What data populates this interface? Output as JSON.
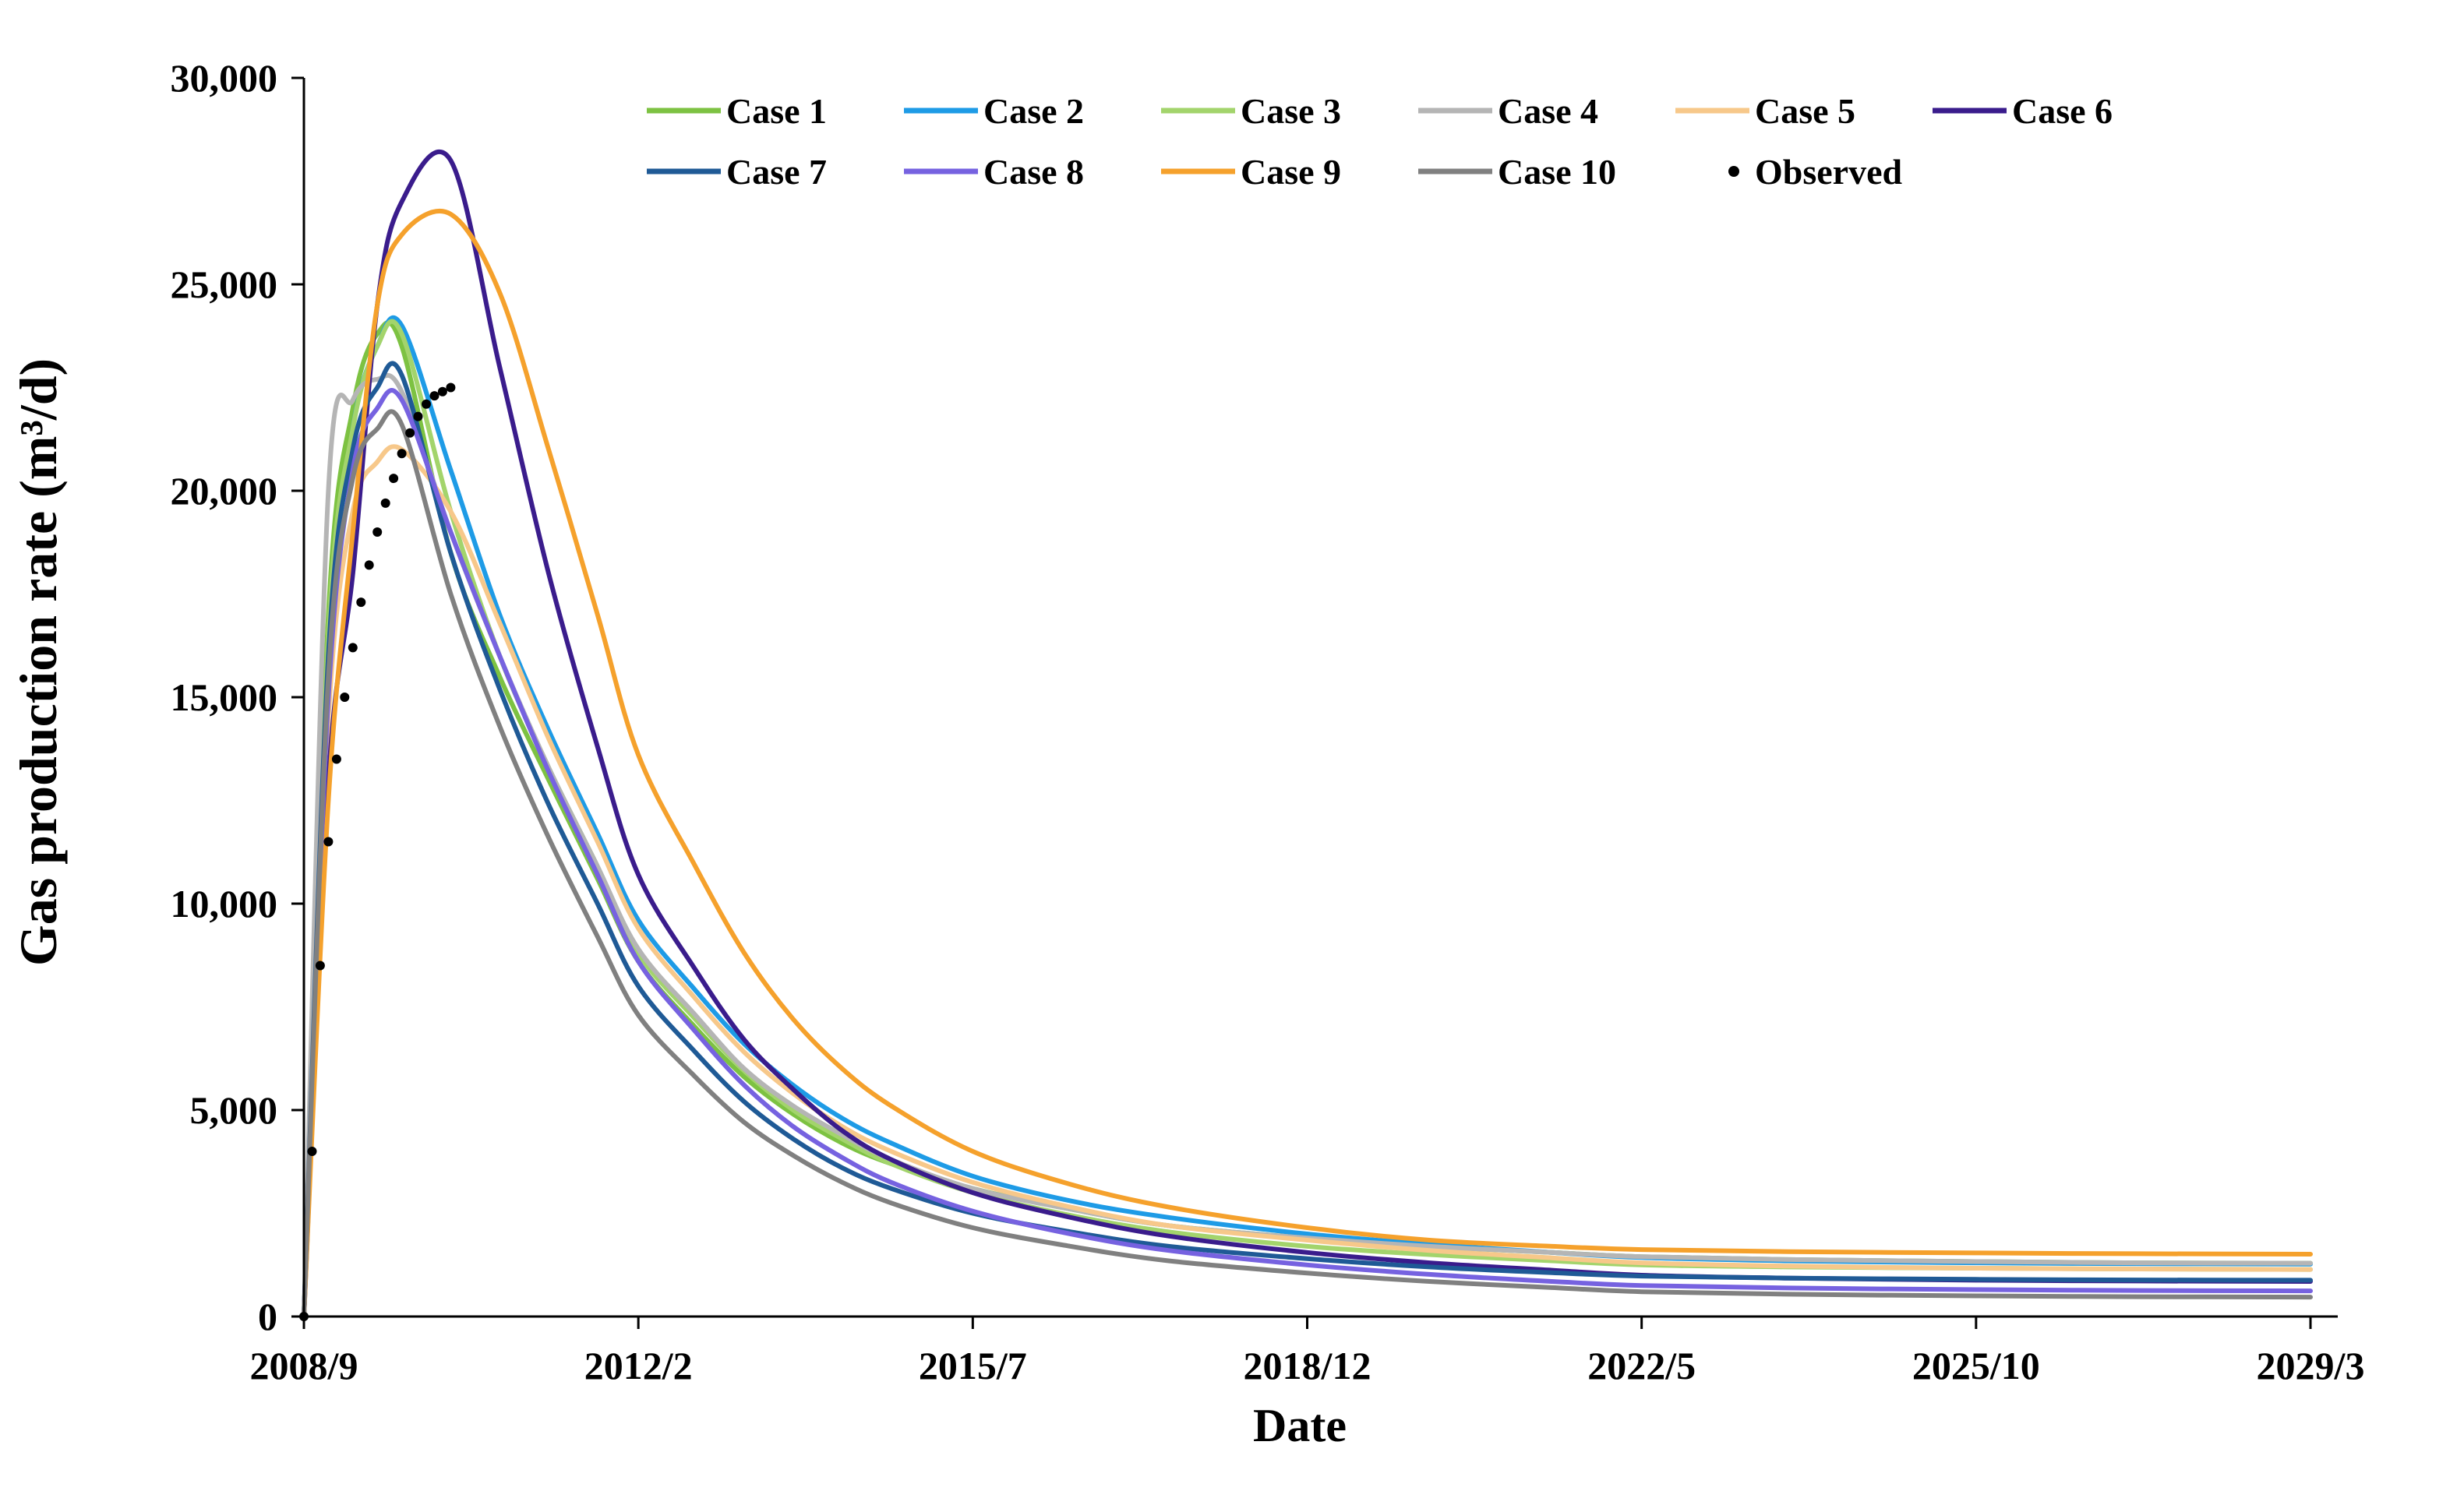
{
  "chart_data": {
    "type": "line",
    "title": "",
    "xlabel": "Date",
    "ylabel": "Gas production rate (m³/d)",
    "x_ticks": [
      "2008/9",
      "2012/2",
      "2015/7",
      "2018/12",
      "2022/5",
      "2025/10",
      "2029/3"
    ],
    "xlim": [
      "2008/9",
      "2029/3"
    ],
    "ylim": [
      0,
      30000
    ],
    "y_ticks": [
      0,
      5000,
      10000,
      15000,
      20000,
      25000,
      30000
    ],
    "y_tick_labels": [
      "0",
      "5,000",
      "10,000",
      "15,000",
      "20,000",
      "25,000",
      "30,000"
    ],
    "grid": false,
    "legend_position": "top",
    "x": [
      "2008/9",
      "2008/12",
      "2009/3",
      "2009/6",
      "2009/9",
      "2010/3",
      "2010/9",
      "2011/3",
      "2011/9",
      "2012/2",
      "2012/9",
      "2013/3",
      "2013/9",
      "2014/3",
      "2014/9",
      "2015/7",
      "2016/7",
      "2017/7",
      "2018/12",
      "2020/3",
      "2021/6",
      "2022/5",
      "2023/11",
      "2025/10",
      "2027/6",
      "2029/3"
    ],
    "series": [
      {
        "name": "Case 1",
        "color": "#7dc242",
        "values": [
          0,
          17000,
          22000,
          23800,
          23500,
          18500,
          15500,
          13000,
          10600,
          8600,
          7000,
          5800,
          4900,
          4200,
          3700,
          3100,
          2600,
          2200,
          1900,
          1700,
          1550,
          1450,
          1380,
          1330,
          1300,
          1290
        ]
      },
      {
        "name": "Case 2",
        "color": "#1e9be6",
        "values": [
          0,
          16000,
          21500,
          23500,
          24000,
          20500,
          17000,
          14200,
          11700,
          9600,
          7900,
          6600,
          5600,
          4800,
          4200,
          3400,
          2800,
          2400,
          2000,
          1750,
          1550,
          1430,
          1350,
          1300,
          1280,
          1270
        ]
      },
      {
        "name": "Case 3",
        "color": "#a3d46c",
        "values": [
          0,
          16500,
          21500,
          23500,
          23800,
          19500,
          16000,
          13300,
          10900,
          8800,
          7200,
          5950,
          5000,
          4300,
          3700,
          3000,
          2450,
          2050,
          1700,
          1500,
          1350,
          1250,
          1200,
          1170,
          1150,
          1140
        ]
      },
      {
        "name": "Case 4",
        "color": "#b5b5b5",
        "values": [
          0,
          20000,
          22200,
          22700,
          22400,
          19000,
          16000,
          13300,
          10900,
          8900,
          7300,
          6000,
          5100,
          4400,
          3800,
          3100,
          2600,
          2200,
          1900,
          1700,
          1550,
          1450,
          1380,
          1330,
          1300,
          1290
        ]
      },
      {
        "name": "Case 5",
        "color": "#f7c88a",
        "values": [
          0,
          14500,
          19500,
          20700,
          21000,
          19500,
          16800,
          14000,
          11500,
          9400,
          7700,
          6400,
          5400,
          4600,
          4000,
          3250,
          2650,
          2200,
          1850,
          1600,
          1420,
          1300,
          1220,
          1170,
          1150,
          1140
        ]
      },
      {
        "name": "Case 6",
        "color": "#3a1c8c",
        "values": [
          0,
          13000,
          18000,
          24500,
          27000,
          28000,
          23000,
          18000,
          13800,
          10700,
          8400,
          6700,
          5500,
          4500,
          3800,
          3000,
          2400,
          1950,
          1550,
          1300,
          1120,
          1000,
          930,
          880,
          860,
          850
        ]
      },
      {
        "name": "Case 7",
        "color": "#1f5a96",
        "values": [
          0,
          16000,
          21000,
          22500,
          22800,
          18500,
          15200,
          12400,
          10000,
          8000,
          6400,
          5200,
          4300,
          3600,
          3100,
          2500,
          2050,
          1700,
          1400,
          1200,
          1060,
          980,
          930,
          900,
          885,
          880
        ]
      },
      {
        "name": "Case 8",
        "color": "#7662e0",
        "values": [
          0,
          15000,
          20500,
          22000,
          22200,
          19000,
          16000,
          13200,
          10700,
          8600,
          6900,
          5600,
          4600,
          3850,
          3250,
          2550,
          2000,
          1600,
          1250,
          1020,
          850,
          750,
          690,
          650,
          630,
          620
        ]
      },
      {
        "name": "Case 9",
        "color": "#f5a12c",
        "values": [
          0,
          12500,
          19000,
          24500,
          26200,
          26700,
          24800,
          21000,
          17000,
          13600,
          10900,
          8800,
          7200,
          6000,
          5100,
          4000,
          3200,
          2650,
          2150,
          1850,
          1700,
          1620,
          1570,
          1540,
          1520,
          1510
        ]
      },
      {
        "name": "Case 10",
        "color": "#808080",
        "values": [
          0,
          15500,
          20300,
          21500,
          21600,
          17500,
          14300,
          11600,
          9200,
          7300,
          5800,
          4700,
          3900,
          3250,
          2750,
          2150,
          1700,
          1350,
          1050,
          850,
          700,
          600,
          540,
          500,
          480,
          470
        ]
      }
    ],
    "observed": {
      "name": "Observed",
      "color": "#000000",
      "x": [
        "2008/9",
        "2008/10",
        "2008/11",
        "2008/12",
        "2009/1",
        "2009/2",
        "2009/3",
        "2009/4",
        "2009/5",
        "2009/6",
        "2009/7",
        "2009/8",
        "2009/9",
        "2009/10",
        "2009/11",
        "2009/12",
        "2010/1",
        "2010/2",
        "2010/3"
      ],
      "values": [
        0,
        4000,
        8500,
        11500,
        13500,
        15000,
        16200,
        17300,
        18200,
        19000,
        19700,
        20300,
        20900,
        21400,
        21800,
        22100,
        22300,
        22400,
        22500
      ]
    }
  }
}
